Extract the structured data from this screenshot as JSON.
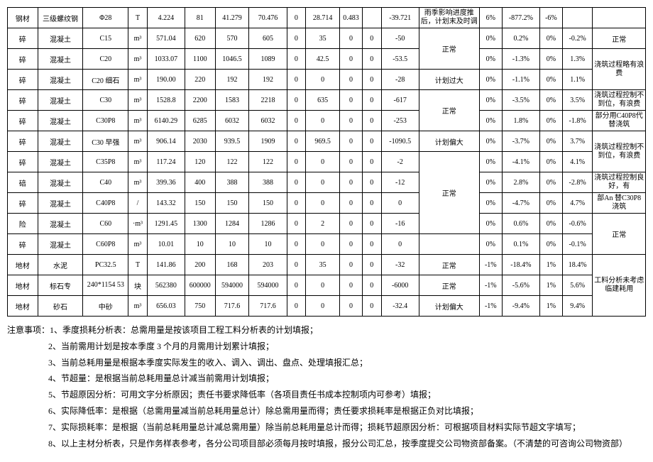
{
  "table": {
    "col_widths_pct": [
      4,
      6,
      6,
      2.5,
      5,
      4,
      4.5,
      5,
      2.5,
      4.5,
      3,
      2.5,
      5,
      8,
      3,
      5,
      3,
      4,
      7
    ],
    "rows": [
      {
        "c": [
          "钢材",
          "三级螺纹钢",
          "Φ28",
          "T",
          "4.224",
          "81",
          "41.279",
          "70.476",
          "0",
          "28.714",
          "0.483",
          "",
          "-39.721",
          "雨季影响进度推后，计划末及时调",
          "6%",
          "-877.2%",
          "-6%",
          "",
          ""
        ],
        "wrap": [
          13
        ]
      },
      {
        "c": [
          "碎",
          "混凝土",
          "C15",
          "m³",
          "571.04",
          "620",
          "570",
          "605",
          "0",
          "35",
          "0",
          "0",
          "-50",
          "正常",
          "0%",
          "0.2%",
          "0%",
          "-0.2%",
          "正常"
        ],
        "merge": {
          "13": 2
        }
      },
      {
        "c": [
          "碎",
          "混凝土",
          "C20",
          "m³",
          "1033.07",
          "1100",
          "1046.5",
          "1089",
          "0",
          "42.5",
          "0",
          "0",
          "-53.5",
          "",
          "0%",
          "-1.3%",
          "0%",
          "1.3%",
          "浇筑过程略有浪费"
        ],
        "skip": [
          13
        ],
        "merge": {
          "18": 2
        },
        "wrap": [
          18
        ]
      },
      {
        "c": [
          "碎",
          "混凝土",
          "C20 细石",
          "m³",
          "190.00",
          "220",
          "192",
          "192",
          "0",
          "0",
          "0",
          "0",
          "-28",
          "计划过大",
          "0%",
          "-1.1%",
          "0%",
          "1.1%",
          ""
        ],
        "skip": [
          18
        ]
      },
      {
        "c": [
          "碎",
          "混凝土",
          "C30",
          "m³",
          "1528.8",
          "2200",
          "1583",
          "2218",
          "0",
          "635",
          "0",
          "0",
          "-617",
          "正常",
          "0%",
          "-3.5%",
          "0%",
          "3.5%",
          "浇筑过程控制不到位，有浪费"
        ],
        "merge": {
          "13": 2
        },
        "wrap": [
          18
        ]
      },
      {
        "c": [
          "碎",
          "混凝土",
          "C30P8",
          "m³",
          "6140.29",
          "6285",
          "6032",
          "6032",
          "0",
          "0",
          "0",
          "0",
          "-253",
          "",
          "0%",
          "1.8%",
          "0%",
          "-1.8%",
          "部分用C40P8代替浇筑"
        ],
        "skip": [
          13
        ],
        "wrap": [
          18
        ]
      },
      {
        "c": [
          "碎",
          "混凝土",
          "C30 早强",
          "m³",
          "906.14",
          "2030",
          "939.5",
          "1909",
          "0",
          "969.5",
          "0",
          "0",
          "-1090.5",
          "计划偏大",
          "0%",
          "-3.7%",
          "0%",
          "3.7%",
          "浇筑过程控制不到位，有浪费"
        ],
        "merge": {
          "18": 2
        },
        "wrap": [
          18
        ]
      },
      {
        "c": [
          "碎",
          "混凝土",
          "C35P8",
          "m³",
          "117.24",
          "120",
          "122",
          "122",
          "0",
          "0",
          "0",
          "0",
          "-2",
          "正常",
          "0%",
          "-4.1%",
          "0%",
          "4.1%",
          ""
        ],
        "skip": [
          18
        ],
        "merge": {
          "13": 4
        }
      },
      {
        "c": [
          "碚",
          "混凝土",
          "C40",
          "m³",
          "399.36",
          "400",
          "388",
          "388",
          "0",
          "0",
          "0",
          "0",
          "-12",
          "",
          "0%",
          "2.8%",
          "0%",
          "-2.8%",
          "浇筑过程控制良好，有"
        ],
        "skip": [
          13
        ],
        "wrap": [
          18
        ]
      },
      {
        "c": [
          "碎",
          "混凝土",
          "C40P8",
          "/",
          "143.32",
          "150",
          "150",
          "150",
          "0",
          "0",
          "0",
          "0",
          "0",
          "",
          "0%",
          "-4.7%",
          "0%",
          "4.7%",
          "部An 替C30P8 浇筑"
        ],
        "skip": [
          13
        ],
        "wrap": [
          18
        ]
      },
      {
        "c": [
          "险",
          "混凝土",
          "C60",
          "·m³",
          "1291.45",
          "1300",
          "1284",
          "1286",
          "0",
          "2",
          "0",
          "0",
          "-16",
          "",
          "0%",
          "0.6%",
          "0%",
          "-0.6%",
          "正常"
        ],
        "skip": [
          13
        ],
        "merge": {
          "18": 2
        }
      },
      {
        "c": [
          "碎",
          "混凝土",
          "C60P8",
          "m³",
          "10.01",
          "10",
          "10",
          "10",
          "0",
          "0",
          "0",
          "0",
          "0",
          "",
          "0%",
          "0.1%",
          "0%",
          "-0.1%",
          ""
        ],
        "skip": [
          18
        ]
      },
      {
        "c": [
          "地材",
          "水泥",
          "PC32.5",
          "T",
          "141.86",
          "200",
          "168",
          "203",
          "0",
          "35",
          "0",
          "0",
          "-32",
          "正常",
          "-1%",
          "-18.4%",
          "1%",
          "18.4%",
          "工料分析未考虑临建耗用"
        ],
        "merge": {
          "18": 3
        },
        "wrap": [
          18
        ]
      },
      {
        "c": [
          "地材",
          "标石专",
          "240*1154 53",
          "块",
          "562380",
          "600000",
          "594000",
          "594000",
          "0",
          "0",
          "0",
          "0",
          "-6000",
          "正常",
          "-1%",
          "-5.6%",
          "1%",
          "5.6%",
          ""
        ],
        "skip": [
          18
        ],
        "wrap": [
          2
        ]
      },
      {
        "c": [
          "地材",
          "砂石",
          "中砂",
          "m³",
          "656.03",
          "750",
          "717.6",
          "717.6",
          "0",
          "0",
          "0",
          "0",
          "-32.4",
          "计划偏大",
          "-1%",
          "-9.4%",
          "1%",
          "9.4%",
          ""
        ],
        "skip": [
          18
        ]
      }
    ]
  },
  "notes": {
    "lead": "注意事项：",
    "items": [
      "1、季度损耗分析表：总需用量是按该项目工程工料分析表的计划填报；",
      "2、当前需用计划是按本季度 3 个月的月需用计划累计填报；",
      "3、当前总耗用量是根据本季度实际发生的收入、调入、调出、盘点、处理填报汇总；",
      "4、节超量：是根据当前总耗用量总计减当前需用计划填报；",
      "5、节超原因分析：可用文字分析原因；责任书要求降低率（各项目责任书成本控制项内可参考）填报；",
      "6、实际降低率：是根据（总需用量减当前总耗用量总计）除总需用量而得；责任要求损耗率是根据正负对比填报；",
      "7、实际损耗率：是根据（当前总耗用量总计减总需用量）除当前总耗用量总计而得；损耗节超原因分析：可根据项目材料实际节超文字填写；",
      "8、以上主材分析表，只是作务样表参考，各分公司项目部必须每月按时填报，报分公司汇总，按季度提交公司物资部备案。（不清楚的可咨询公司物资部）"
    ]
  }
}
